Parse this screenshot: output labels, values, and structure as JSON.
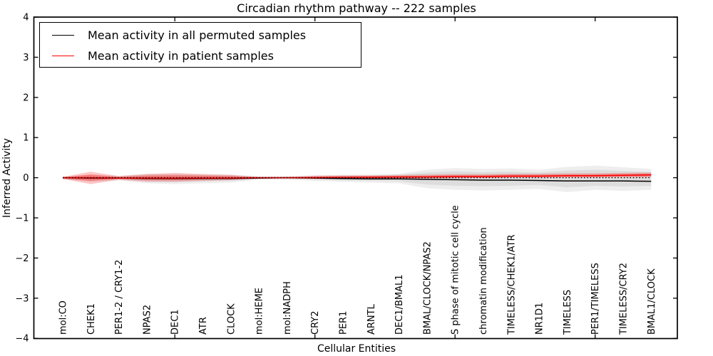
{
  "chart_data": {
    "type": "line",
    "title": "Circadian rhythm pathway -- 222 samples",
    "xlabel": "Cellular Entities",
    "ylabel": "Inferred Activity",
    "ylim": [
      -4,
      4
    ],
    "yticks": [
      4,
      3,
      2,
      1,
      0,
      -1,
      -2,
      -3,
      -4
    ],
    "ytick_labels": [
      "4",
      "3",
      "2",
      "1",
      "0",
      "−1",
      "−2",
      "−3",
      "−4"
    ],
    "grid": false,
    "legend_position": "upper left",
    "categories": [
      "mol:CO",
      "CHEK1",
      "PER1-2 / CRY1-2",
      "NPAS2",
      "DEC1",
      "ATR",
      "CLOCK",
      "mol:HEME",
      "mol:NADPH",
      "CRY2",
      "PER1",
      "ARNTL",
      "DEC1/BMAL1",
      "BMAL/CLOCK/NPAS2",
      "S phase of mitotic cell cycle",
      "chromatin modification",
      "TIMELESS/CHEK1/ATR",
      "NR1D1",
      "TIMELESS",
      "PER1/TIMELESS",
      "TIMELESS/CRY2",
      "BMAL1/CLOCK"
    ],
    "series": [
      {
        "id": "permuted-mean-line",
        "name": "Mean activity in all permuted samples",
        "color": "#000000",
        "values": [
          0.0,
          -0.01,
          -0.01,
          -0.02,
          -0.02,
          -0.02,
          -0.02,
          -0.01,
          0.0,
          -0.01,
          -0.02,
          -0.03,
          -0.03,
          -0.04,
          -0.05,
          -0.06,
          -0.06,
          -0.07,
          -0.08,
          -0.08,
          -0.08,
          -0.09
        ]
      },
      {
        "id": "patient-mean-line",
        "name": "Mean activity in patient samples",
        "color": "#ff0000",
        "values": [
          0.0,
          0.0,
          -0.01,
          -0.01,
          -0.01,
          -0.01,
          -0.01,
          0.0,
          0.0,
          0.0,
          0.01,
          0.01,
          0.02,
          0.02,
          0.03,
          0.03,
          0.04,
          0.04,
          0.05,
          0.05,
          0.06,
          0.07
        ]
      }
    ],
    "bands": [
      {
        "id": "permuted-band-outer",
        "color": "#888888",
        "opacity": 0.14,
        "upper": [
          0.03,
          0.08,
          0.05,
          0.1,
          0.1,
          0.09,
          0.08,
          0.04,
          0.04,
          0.06,
          0.07,
          0.08,
          0.1,
          0.2,
          0.24,
          0.22,
          0.23,
          0.2,
          0.27,
          0.3,
          0.26,
          0.22
        ],
        "lower": [
          -0.04,
          -0.1,
          -0.07,
          -0.14,
          -0.16,
          -0.14,
          -0.12,
          -0.05,
          -0.05,
          -0.08,
          -0.1,
          -0.12,
          -0.14,
          -0.26,
          -0.3,
          -0.32,
          -0.3,
          -0.28,
          -0.36,
          -0.3,
          -0.33,
          -0.3
        ]
      },
      {
        "id": "permuted-band-inner",
        "color": "#888888",
        "opacity": 0.16,
        "upper": [
          0.02,
          0.05,
          0.03,
          0.07,
          0.07,
          0.06,
          0.05,
          0.03,
          0.03,
          0.04,
          0.05,
          0.05,
          0.07,
          0.13,
          0.16,
          0.14,
          0.15,
          0.13,
          0.18,
          0.2,
          0.17,
          0.14
        ],
        "lower": [
          -0.03,
          -0.07,
          -0.05,
          -0.09,
          -0.11,
          -0.09,
          -0.08,
          -0.03,
          -0.03,
          -0.05,
          -0.07,
          -0.08,
          -0.09,
          -0.17,
          -0.2,
          -0.21,
          -0.2,
          -0.18,
          -0.24,
          -0.2,
          -0.22,
          -0.2
        ]
      },
      {
        "id": "patient-band-outer",
        "color": "#ff0000",
        "opacity": 0.22,
        "upper": [
          0.02,
          0.15,
          0.04,
          0.09,
          0.12,
          0.09,
          0.07,
          0.02,
          0.02,
          0.05,
          0.06,
          0.06,
          0.07,
          0.08,
          0.09,
          0.09,
          0.1,
          0.1,
          0.11,
          0.11,
          0.12,
          0.13
        ],
        "lower": [
          -0.03,
          -0.16,
          -0.05,
          -0.1,
          -0.1,
          -0.08,
          -0.06,
          -0.02,
          -0.02,
          -0.03,
          -0.03,
          -0.03,
          -0.02,
          -0.02,
          -0.01,
          -0.01,
          0.0,
          0.0,
          0.01,
          0.01,
          0.01,
          0.01
        ]
      },
      {
        "id": "patient-band-inner",
        "color": "#ff0000",
        "opacity": 0.3,
        "upper": [
          0.01,
          0.08,
          0.02,
          0.05,
          0.06,
          0.05,
          0.04,
          0.01,
          0.01,
          0.03,
          0.03,
          0.04,
          0.04,
          0.05,
          0.06,
          0.06,
          0.07,
          0.07,
          0.08,
          0.08,
          0.09,
          0.1
        ],
        "lower": [
          -0.02,
          -0.08,
          -0.03,
          -0.05,
          -0.06,
          -0.04,
          -0.03,
          -0.01,
          -0.01,
          -0.02,
          -0.02,
          -0.01,
          -0.01,
          -0.01,
          0.0,
          0.0,
          0.01,
          0.01,
          0.02,
          0.02,
          0.03,
          0.04
        ]
      }
    ],
    "zero_line": {
      "y": 0,
      "color": "#000000",
      "style": "dotted"
    }
  }
}
